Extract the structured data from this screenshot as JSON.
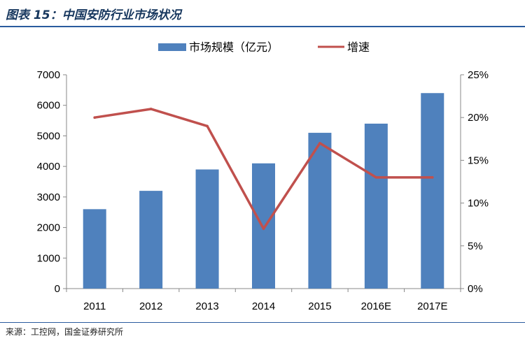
{
  "figure": {
    "title": "图表 15：中国安防行业市场状况",
    "source": "来源：工控网，国金证券研究所"
  },
  "colors": {
    "bar": "#4f81bd",
    "line": "#c0504d",
    "axis": "#888888",
    "title": "#17375e"
  },
  "chart_data": {
    "type": "bar",
    "title": "",
    "categories": [
      "2011",
      "2012",
      "2013",
      "2014",
      "2015",
      "2016E",
      "2017E"
    ],
    "series": [
      {
        "name": "市场规模（亿元）",
        "type": "bar",
        "axis": "left",
        "values": [
          2600,
          3200,
          3900,
          4100,
          5100,
          5400,
          6400
        ]
      },
      {
        "name": "增速",
        "type": "line",
        "axis": "right",
        "values": [
          20,
          21,
          19,
          7,
          17,
          13,
          13
        ]
      }
    ],
    "y_left": {
      "min": 0,
      "max": 7000,
      "step": 1000,
      "ticks": [
        "0",
        "1000",
        "2000",
        "3000",
        "4000",
        "5000",
        "6000",
        "7000"
      ]
    },
    "y_right": {
      "min": 0,
      "max": 25,
      "step": 5,
      "ticks": [
        "0%",
        "5%",
        "10%",
        "15%",
        "20%",
        "25%"
      ]
    },
    "legend_position": "top-center",
    "grid": false
  }
}
